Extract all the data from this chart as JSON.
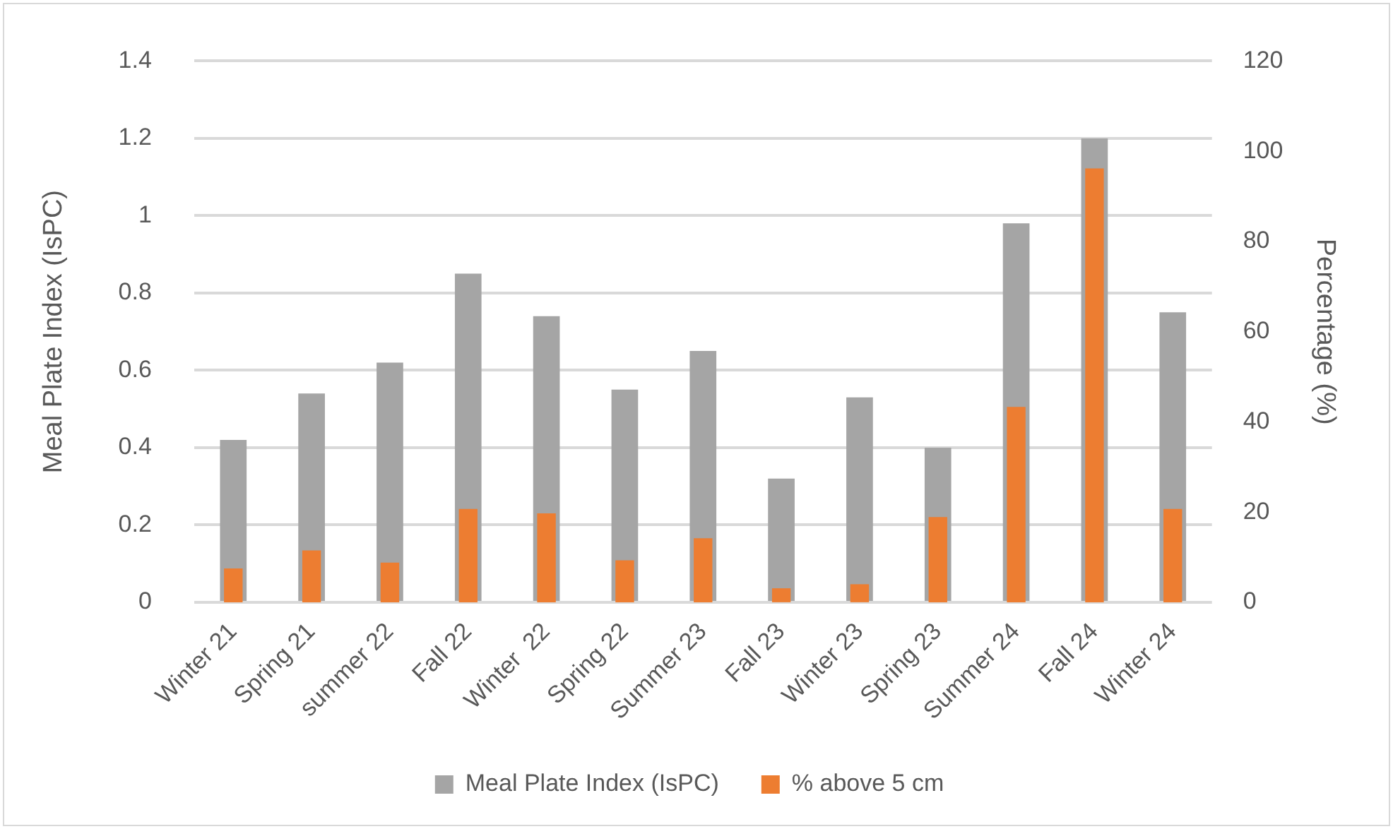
{
  "chart_data": {
    "type": "bar",
    "ylabel": "Meal Plate Index (IsPC)",
    "y2label": "Percentage (%)",
    "categories": [
      "Winter 21",
      "Spring 21",
      "summer 22",
      "Fall 22",
      "Winter  22",
      "Spring 22",
      "Summer 23",
      "Fall 23",
      "Winter 23",
      "Spring 23",
      "Summer 24",
      "Fall 24",
      "Winter 24"
    ],
    "series": [
      {
        "name": "Meal Plate Index (IsPC)",
        "color": "#a5a5a5",
        "values": [
          0.42,
          0.54,
          0.62,
          0.85,
          0.74,
          0.55,
          0.65,
          0.32,
          0.53,
          0.4,
          0.98,
          1.2,
          0.75
        ]
      },
      {
        "name": "% above 5 cm",
        "color": "#ed7d31",
        "axis": "y2",
        "values": [
          7.5,
          11.5,
          8.8,
          20.7,
          19.7,
          9.3,
          14.2,
          3.1,
          4,
          18.9,
          43.3,
          96.2,
          20.7
        ]
      }
    ],
    "ylim": [
      0,
      1.4
    ],
    "yticks": [
      0,
      0.2,
      0.4,
      0.6,
      0.8,
      1,
      1.2,
      1.4
    ],
    "y2lim": [
      0,
      120
    ],
    "y2ticks": [
      0,
      20,
      40,
      60,
      80,
      100,
      120
    ],
    "grid": "y",
    "legend": "bottom"
  }
}
